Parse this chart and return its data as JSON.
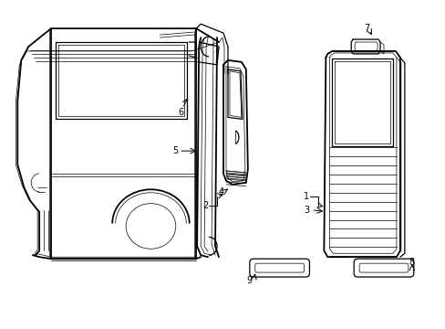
{
  "bg_color": "#ffffff",
  "line_color": "#000000",
  "figsize": [
    4.89,
    3.6
  ],
  "dpi": 100,
  "lw_thin": 0.5,
  "lw_med": 0.9,
  "lw_thick": 1.3,
  "font_size": 7.0
}
